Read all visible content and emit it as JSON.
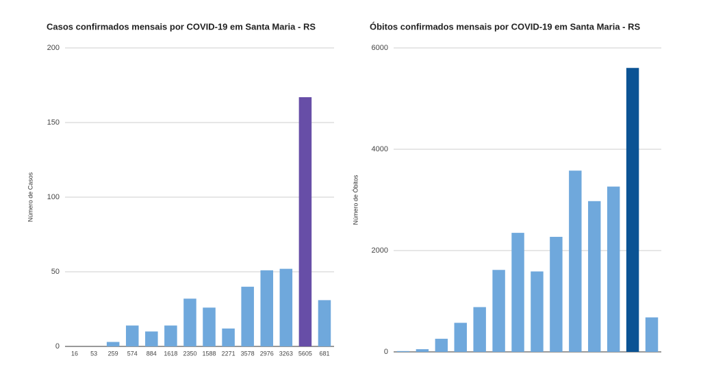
{
  "chart_data": [
    {
      "type": "bar",
      "title": "Casos confirmados mensais por COVID-19 em Santa Maria - RS",
      "ylabel": "Número de Casos",
      "categories": [
        "16",
        "53",
        "259",
        "574",
        "884",
        "1618",
        "2350",
        "1588",
        "2271",
        "3578",
        "2976",
        "3263",
        "5605",
        "681"
      ],
      "values": [
        0,
        0,
        3,
        14,
        10,
        14,
        32,
        26,
        12,
        40,
        51,
        52,
        167,
        31
      ],
      "colors": [
        "#6fa8dc",
        "#6fa8dc",
        "#6fa8dc",
        "#6fa8dc",
        "#6fa8dc",
        "#6fa8dc",
        "#6fa8dc",
        "#6fa8dc",
        "#6fa8dc",
        "#6fa8dc",
        "#6fa8dc",
        "#6fa8dc",
        "#674ea7",
        "#6fa8dc"
      ],
      "ylim": [
        0,
        200
      ],
      "yticks": [
        0,
        50,
        100,
        150,
        200
      ],
      "grid": true
    },
    {
      "type": "bar",
      "title": "Óbitos confirmados mensais por COVID-19 em Santa Maria - RS",
      "ylabel": "Número de Óbitos",
      "categories": [
        null,
        null,
        null,
        null,
        null,
        null,
        null,
        null,
        null,
        null,
        null,
        null,
        null,
        null
      ],
      "values": [
        16,
        53,
        259,
        574,
        884,
        1618,
        2350,
        1588,
        2271,
        3578,
        2976,
        3263,
        5605,
        681
      ],
      "colors": [
        "#6fa8dc",
        "#6fa8dc",
        "#6fa8dc",
        "#6fa8dc",
        "#6fa8dc",
        "#6fa8dc",
        "#6fa8dc",
        "#6fa8dc",
        "#6fa8dc",
        "#6fa8dc",
        "#6fa8dc",
        "#6fa8dc",
        "#0b5394",
        "#6fa8dc"
      ],
      "ylim": [
        0,
        6000
      ],
      "yticks": [
        0,
        2000,
        4000,
        6000
      ],
      "grid": true
    }
  ]
}
